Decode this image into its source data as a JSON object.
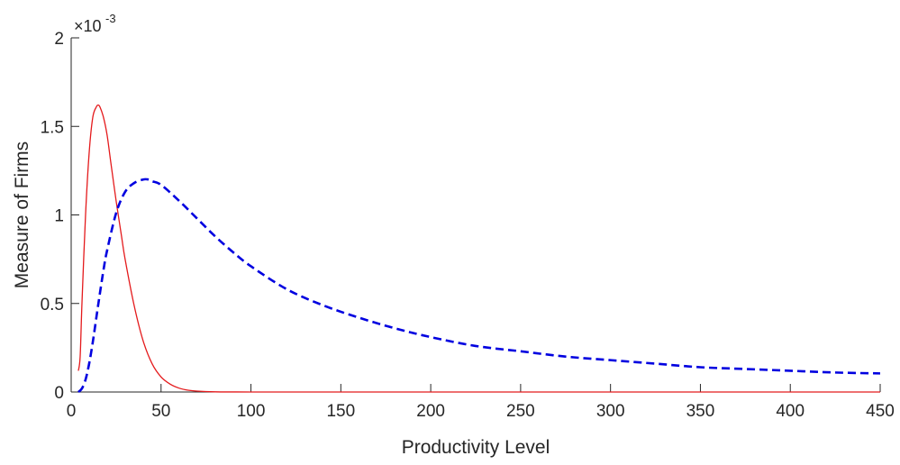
{
  "chart_data": {
    "type": "line",
    "xlabel": "Productivity Level",
    "ylabel": "Measure of Firms",
    "xlim": [
      0,
      450
    ],
    "ylim": [
      0,
      0.002
    ],
    "x_ticks": [
      0,
      50,
      100,
      150,
      200,
      250,
      300,
      350,
      400,
      450
    ],
    "x_tick_labels": [
      "0",
      "50",
      "100",
      "150",
      "200",
      "250",
      "300",
      "350",
      "400",
      "450"
    ],
    "y_ticks": [
      0,
      0.0005,
      0.001,
      0.0015,
      0.002
    ],
    "y_tick_labels": [
      "0",
      "0.5",
      "1",
      "1.5",
      "2"
    ],
    "y_exponent": {
      "base": "×10",
      "power": "-3"
    },
    "grid": false,
    "legend": "none",
    "series": [
      {
        "color": "#e41a1c",
        "style": "solid",
        "x": [
          4,
          5,
          6,
          8,
          10,
          12,
          14,
          15,
          16,
          18,
          20,
          22,
          25,
          28,
          30,
          35,
          40,
          45,
          50,
          55,
          60,
          65,
          70,
          80,
          90,
          100,
          150,
          200,
          250,
          300,
          350,
          400,
          450
        ],
        "y": [
          0.00012,
          0.0002,
          0.0005,
          0.001,
          0.00135,
          0.00155,
          0.00161,
          0.00162,
          0.00161,
          0.00155,
          0.00145,
          0.0013,
          0.00108,
          0.00088,
          0.00075,
          0.00049,
          0.00029,
          0.00016,
          8.5e-05,
          4.5e-05,
          2.2e-05,
          1e-05,
          5e-06,
          1e-06,
          3e-07,
          1e-07,
          0,
          0,
          0,
          0,
          0,
          0,
          0
        ]
      },
      {
        "color": "#0000e0",
        "style": "dashed",
        "x": [
          4,
          6,
          8,
          10,
          12,
          15,
          18,
          20,
          25,
          30,
          35,
          40,
          43,
          45,
          50,
          60,
          70,
          80,
          90,
          100,
          120,
          140,
          160,
          180,
          200,
          225,
          250,
          275,
          300,
          325,
          350,
          375,
          400,
          425,
          450
        ],
        "y": [
          0.0,
          2e-05,
          7e-05,
          0.00016,
          0.00028,
          0.00049,
          0.00069,
          0.0008,
          0.00101,
          0.00113,
          0.00118,
          0.0012,
          0.0012,
          0.00119,
          0.00117,
          0.00108,
          0.00098,
          0.00088,
          0.00079,
          0.00071,
          0.00058,
          0.00049,
          0.00042,
          0.00036,
          0.00031,
          0.00026,
          0.00023,
          0.0002,
          0.00018,
          0.00016,
          0.00014,
          0.00013,
          0.00012,
          0.00011,
          0.000105
        ]
      }
    ]
  }
}
